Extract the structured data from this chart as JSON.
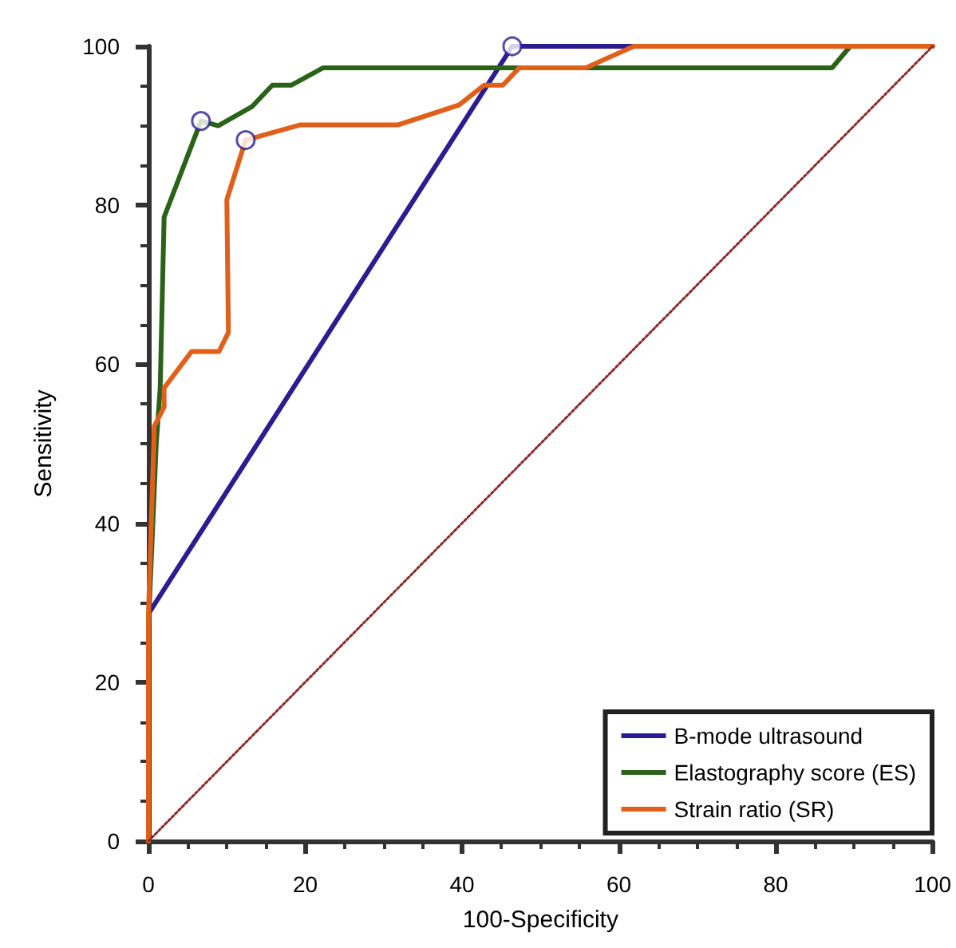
{
  "chart_data": {
    "type": "line",
    "xlabel": "100-Specificity",
    "ylabel": "Sensitivity",
    "xlim": [
      0,
      100
    ],
    "ylim": [
      0,
      100
    ],
    "xticks": [
      0,
      20,
      40,
      60,
      80,
      100
    ],
    "yticks": [
      0,
      20,
      40,
      60,
      80,
      100
    ],
    "grid": false,
    "legend": "bottom right",
    "marker": "none",
    "line_style": "solid",
    "series": [
      {
        "name": "B-mode ultrasound",
        "color": "#2b1d8f",
        "x": [
          0,
          0,
          46.4,
          100
        ],
        "values": [
          0,
          28.6,
          100,
          100
        ]
      },
      {
        "name": "Elastography score (ES)",
        "color": "#2a6218",
        "x": [
          0,
          0,
          1,
          1.5,
          2,
          6.7,
          8.9,
          13.2,
          15.8,
          18.2,
          22.3,
          87.2,
          89.5,
          100
        ],
        "values": [
          0,
          27,
          50,
          57,
          78.5,
          90.6,
          90,
          92.4,
          95.1,
          95.1,
          97.3,
          97.3,
          100,
          100
        ]
      },
      {
        "name": "Strain ratio (SR)",
        "color": "#e05f1a",
        "x": [
          0,
          0,
          0.75,
          2,
          2,
          5.5,
          9,
          10.2,
          10,
          12.4,
          19.3,
          31.8,
          39.6,
          42.8,
          45.2,
          47.3,
          55.8,
          61.9,
          100
        ],
        "values": [
          0,
          28.5,
          52.2,
          54.6,
          57,
          61.6,
          61.6,
          64,
          80.7,
          88.2,
          90.1,
          90.1,
          92.6,
          95.1,
          95.1,
          97.3,
          97.3,
          100,
          100
        ]
      },
      {
        "type": "line",
        "color": "#8b2a2a",
        "line_style": "dotted",
        "x": [
          0,
          100
        ],
        "values": [
          0,
          100
        ]
      },
      {
        "type": "scatter",
        "color": "#2b1d8f",
        "marker": "circle",
        "x": [
          6.7,
          12.4,
          46.4
        ],
        "values": [
          90.6,
          88.2,
          100
        ]
      }
    ]
  }
}
